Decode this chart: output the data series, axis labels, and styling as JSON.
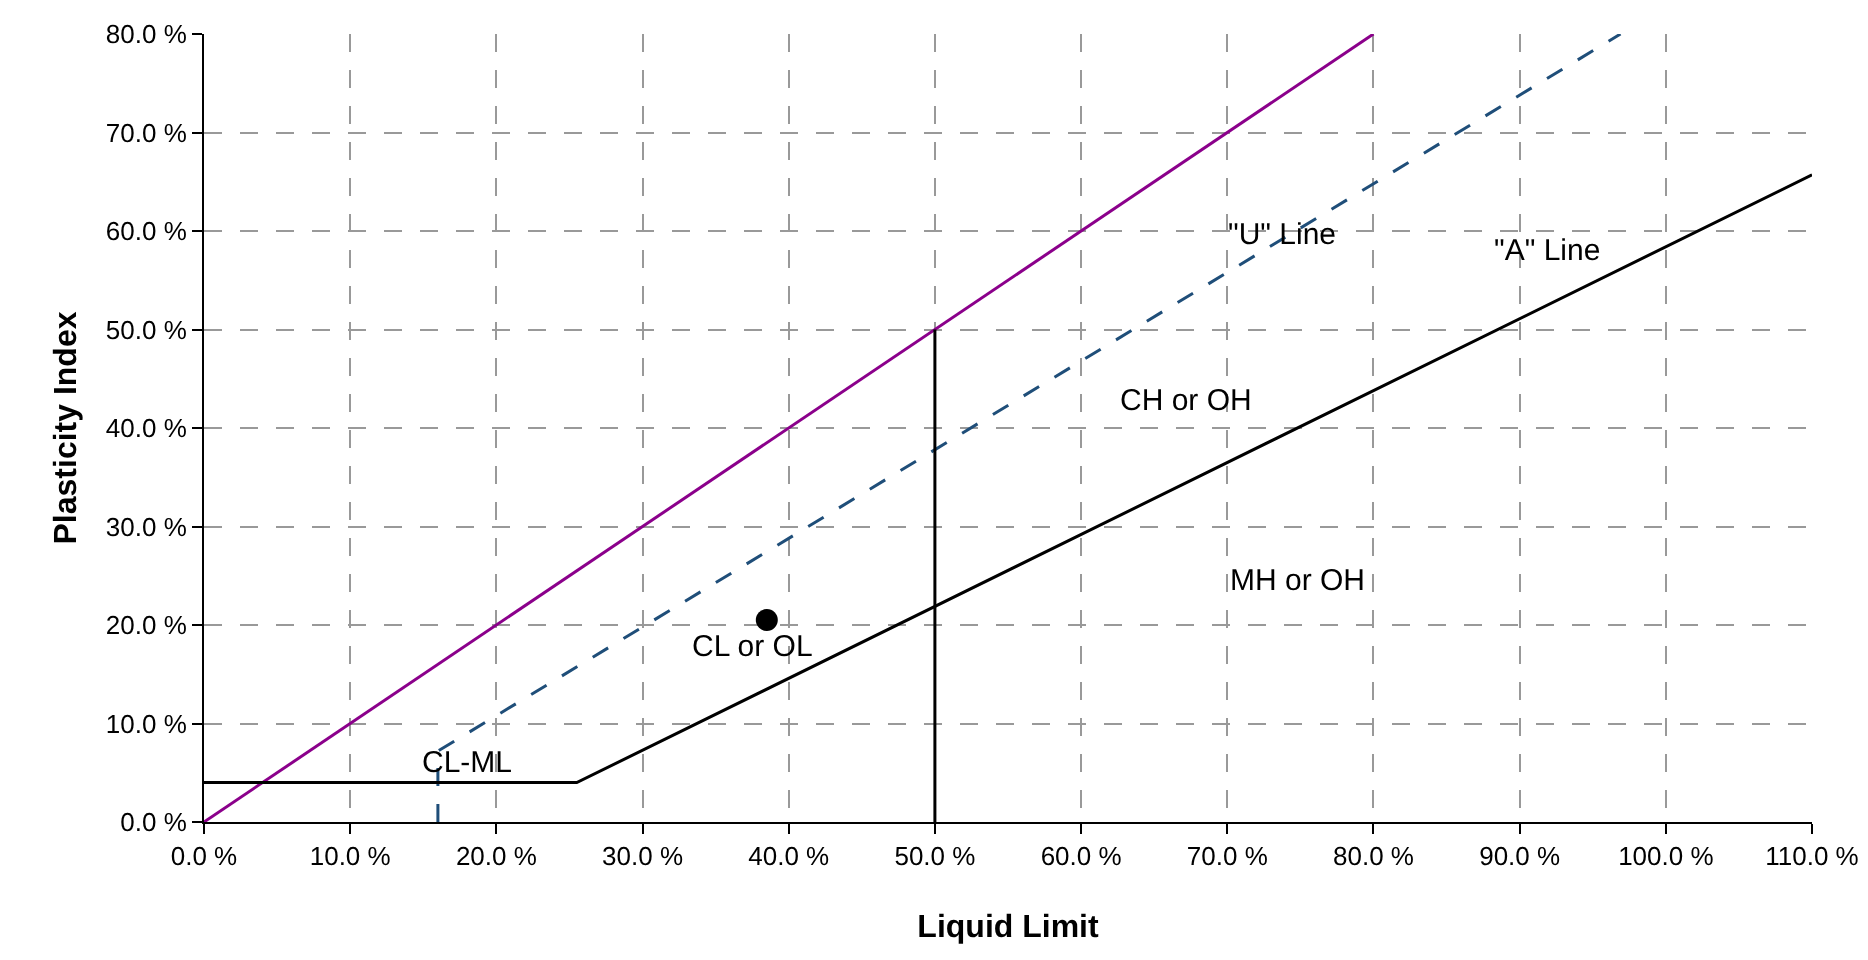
{
  "chart_data": {
    "type": "line",
    "xlabel": "Liquid Limit",
    "ylabel": "Plasticity Index",
    "xlim": [
      0,
      110
    ],
    "ylim": [
      0,
      80
    ],
    "xticks": [
      {
        "value": 0,
        "label": "0.0 %"
      },
      {
        "value": 10,
        "label": "10.0 %"
      },
      {
        "value": 20,
        "label": "20.0 %"
      },
      {
        "value": 30,
        "label": "30.0 %"
      },
      {
        "value": 40,
        "label": "40.0 %"
      },
      {
        "value": 50,
        "label": "50.0 %"
      },
      {
        "value": 60,
        "label": "60.0 %"
      },
      {
        "value": 70,
        "label": "70.0 %"
      },
      {
        "value": 80,
        "label": "80.0 %"
      },
      {
        "value": 90,
        "label": "90.0 %"
      },
      {
        "value": 100,
        "label": "100.0 %"
      },
      {
        "value": 110,
        "label": "110.0 %"
      }
    ],
    "yticks": [
      {
        "value": 0,
        "label": "0.0 %"
      },
      {
        "value": 10,
        "label": "10.0 %"
      },
      {
        "value": 20,
        "label": "20.0 %"
      },
      {
        "value": 30,
        "label": "30.0 %"
      },
      {
        "value": 40,
        "label": "40.0 %"
      },
      {
        "value": 50,
        "label": "50.0 %"
      },
      {
        "value": 60,
        "label": "60.0 %"
      },
      {
        "value": 70,
        "label": "70.0 %"
      },
      {
        "value": 80,
        "label": "80.0 %"
      }
    ],
    "grid": true,
    "series": [
      {
        "type": "line",
        "color": "#8b008b",
        "line_style": "solid",
        "x": [
          0,
          80
        ],
        "values": [
          0,
          80
        ]
      },
      {
        "type": "line",
        "color": "#1f4e79",
        "line_style": "dashed",
        "x": [
          16,
          16,
          96.9
        ],
        "values": [
          0,
          7.2,
          80
        ]
      },
      {
        "type": "line",
        "color": "#000000",
        "line_style": "solid",
        "x": [
          0,
          25.5,
          110
        ],
        "values": [
          4,
          4,
          65.7
        ]
      },
      {
        "type": "line",
        "color": "#000000",
        "line_style": "solid",
        "x": [
          50,
          50
        ],
        "values": [
          0,
          50
        ]
      },
      {
        "type": "scatter",
        "color": "#000000",
        "marker": "circle",
        "x": [
          38.5
        ],
        "values": [
          20.5
        ]
      }
    ],
    "annotations": [
      "\"U\" Line",
      "\"A\" Line",
      "CH or OH",
      "MH or OH",
      "CL or OL",
      "CL-ML"
    ]
  }
}
